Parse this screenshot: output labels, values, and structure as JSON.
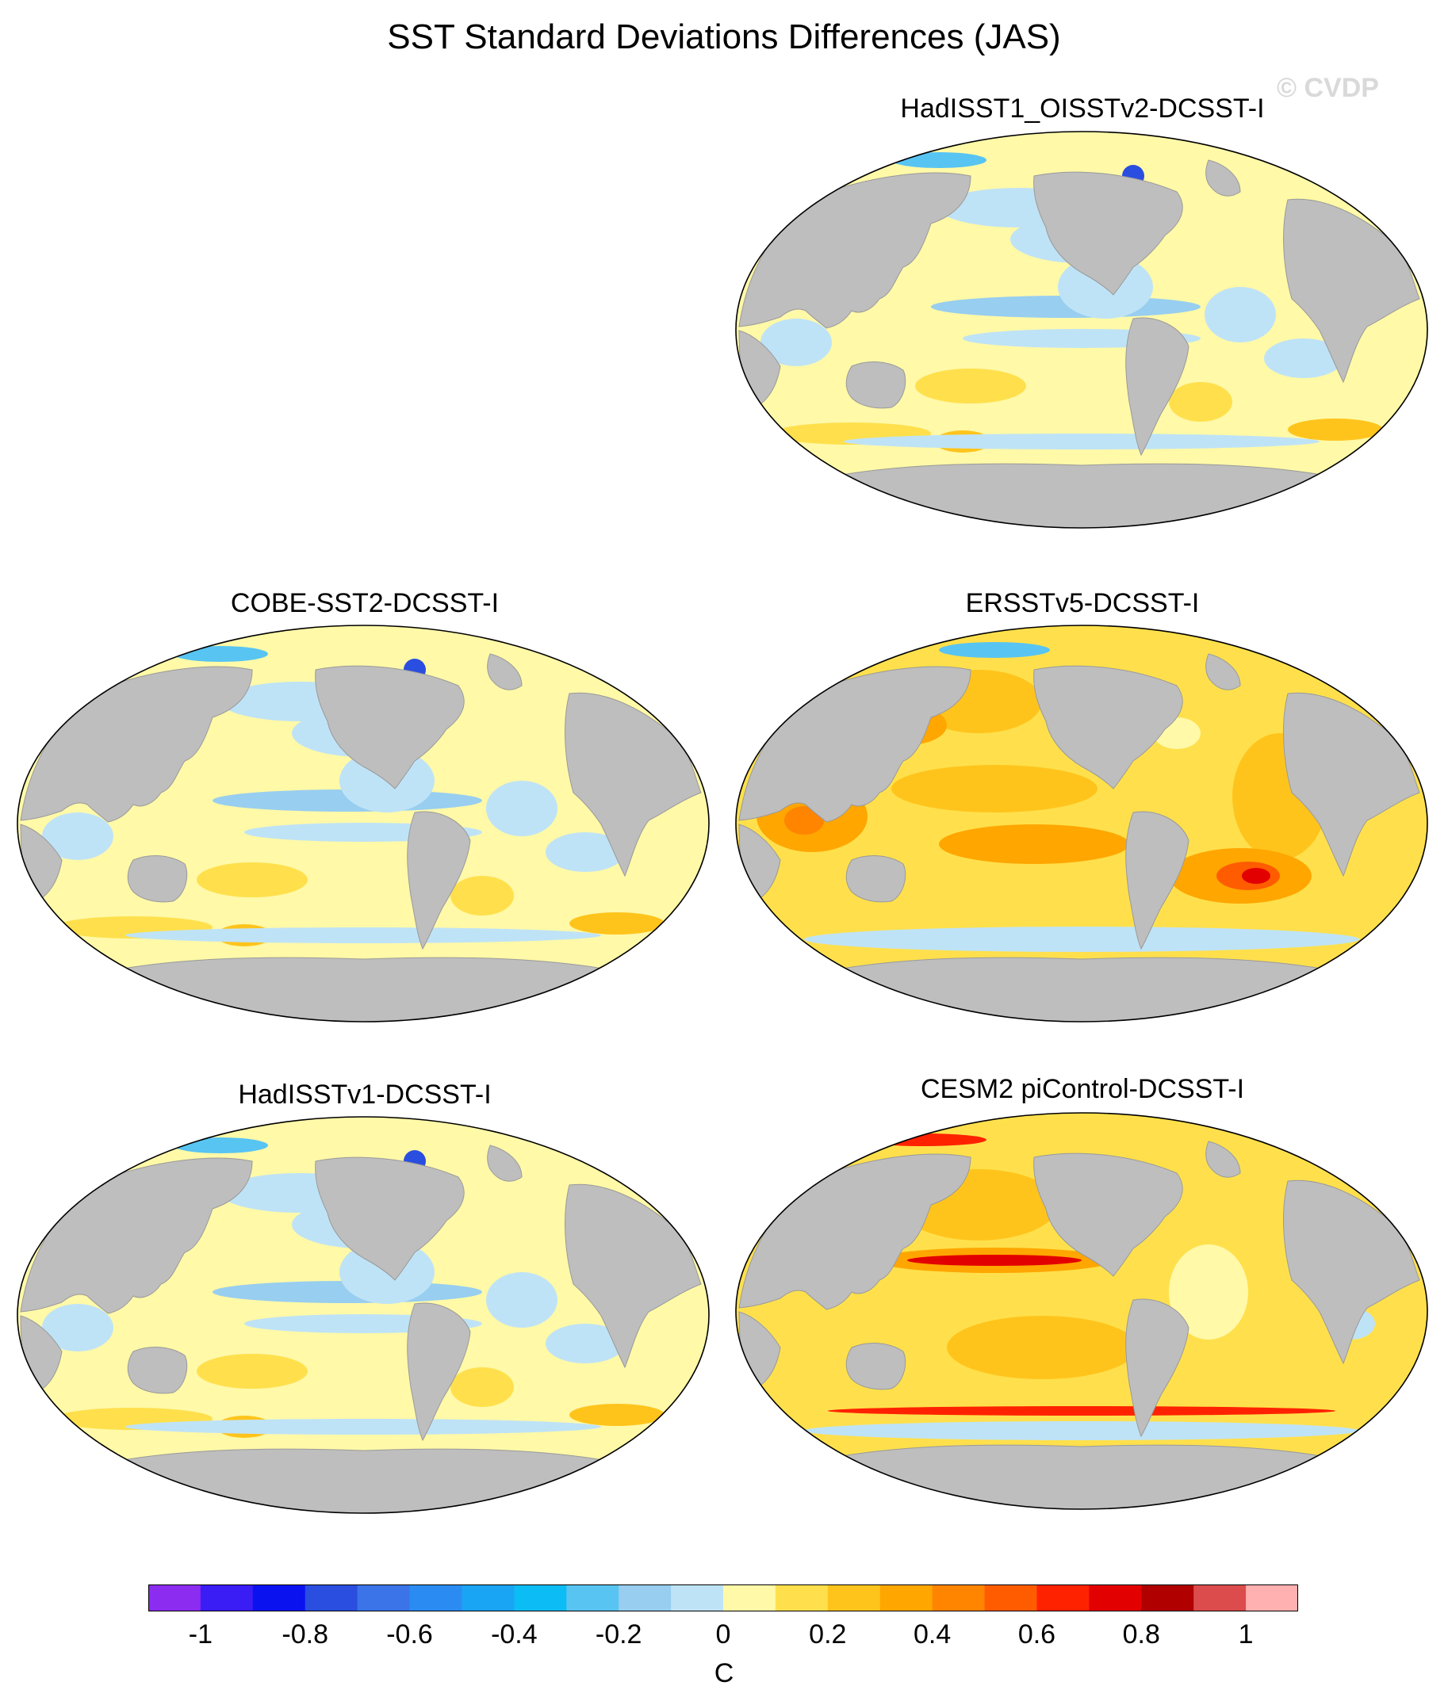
{
  "title": "SST Standard Deviations Differences (JAS)",
  "watermark": "© CVDP",
  "panels": [
    {
      "id": "hadisst-oisst",
      "label": "HadISST1_OISSTv2-DCSST-I",
      "pattern": "mixed-weak"
    },
    {
      "id": "cobe",
      "label": "COBE-SST2-DCSST-I",
      "pattern": "mixed-weak"
    },
    {
      "id": "ersst",
      "label": "ERSSTv5-DCSST-I",
      "pattern": "positive-strong"
    },
    {
      "id": "hadisst",
      "label": "HadISSTv1-DCSST-I",
      "pattern": "mixed-weak"
    },
    {
      "id": "cesm2",
      "label": "CESM2 piControl-DCSST-I",
      "pattern": "positive-equatorial"
    }
  ],
  "colorbar": {
    "unit": "C",
    "colors": [
      "#8b2cf0",
      "#3a1cf5",
      "#0a12f0",
      "#2a4ee0",
      "#3a74e8",
      "#2a8cf2",
      "#1aa4f4",
      "#0cbcf4",
      "#58c4f2",
      "#98cef0",
      "#bfe3f6",
      "#fff9a8",
      "#ffe04c",
      "#ffc41c",
      "#ffa600",
      "#ff8400",
      "#ff5c00",
      "#ff2200",
      "#e30000",
      "#b00000",
      "#dc4c4c",
      "#ffb0b0"
    ],
    "tick_labels": [
      "-1",
      "-0.8",
      "-0.6",
      "-0.4",
      "-0.2",
      "0",
      "0.2",
      "0.4",
      "0.6",
      "0.8",
      "1"
    ]
  }
}
